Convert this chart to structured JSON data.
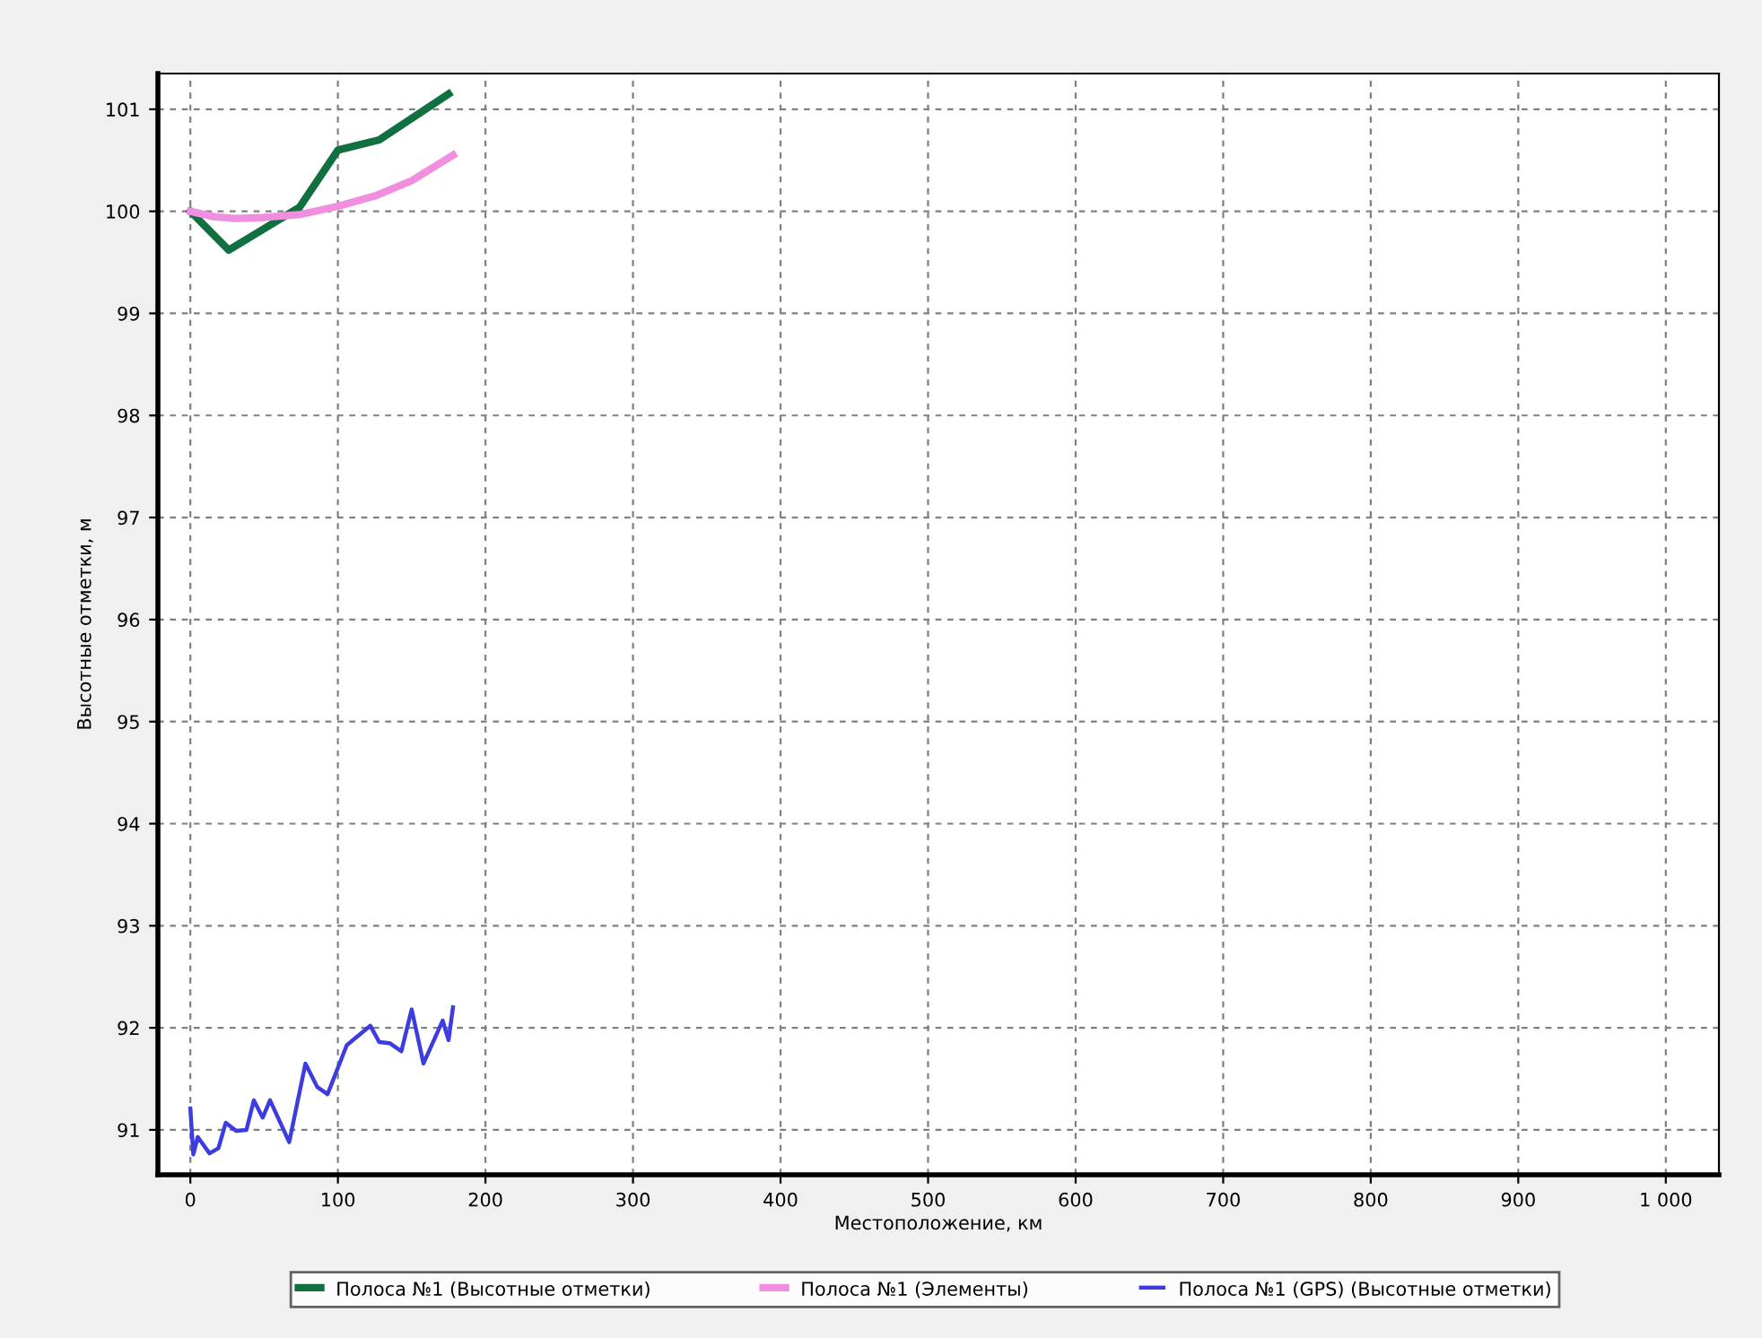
{
  "chart_data": {
    "type": "line",
    "xlabel": "Местоположение, км",
    "ylabel": "Высотные отметки, м",
    "xlim": [
      -22,
      1036
    ],
    "ylim": [
      90.56,
      101.35
    ],
    "xticks": [
      0,
      100,
      200,
      300,
      400,
      500,
      600,
      700,
      800,
      900,
      {
        "value": 1000,
        "label": "1 000"
      }
    ],
    "yticks": [
      91,
      92,
      93,
      94,
      95,
      96,
      97,
      98,
      99,
      100,
      101
    ],
    "grid": true,
    "legend": "bottom",
    "marker": "none",
    "line_style": "solid",
    "series": [
      {
        "name": "Полоса №1 (Высотные отметки)",
        "color": "#107040",
        "x": [
          0,
          26,
          74,
          100,
          128,
          175
        ],
        "values": [
          100.0,
          99.62,
          100.04,
          100.6,
          100.7,
          101.15
        ]
      },
      {
        "name": "Полоса №1 (Элементы)",
        "color": "#f08ee0",
        "x": [
          0,
          15,
          30,
          50,
          75,
          100,
          125,
          150,
          178
        ],
        "values": [
          100.0,
          99.95,
          99.93,
          99.94,
          99.97,
          100.05,
          100.15,
          100.3,
          100.55
        ]
      },
      {
        "name": "Полоса №1 (GPS) (Высотные отметки)",
        "color": "#3c3ce0",
        "x": [
          0,
          2,
          5,
          13,
          19,
          24,
          31,
          38,
          43,
          49,
          54,
          67,
          78,
          86,
          93,
          106,
          122,
          128,
          135,
          143,
          150,
          158,
          171,
          175,
          178
        ],
        "values": [
          91.21,
          90.76,
          90.93,
          90.77,
          90.82,
          91.07,
          90.99,
          91.0,
          91.29,
          91.12,
          91.29,
          90.88,
          91.65,
          91.42,
          91.35,
          91.83,
          92.02,
          91.86,
          91.85,
          91.77,
          92.18,
          91.65,
          92.07,
          91.88,
          92.2
        ]
      }
    ]
  }
}
